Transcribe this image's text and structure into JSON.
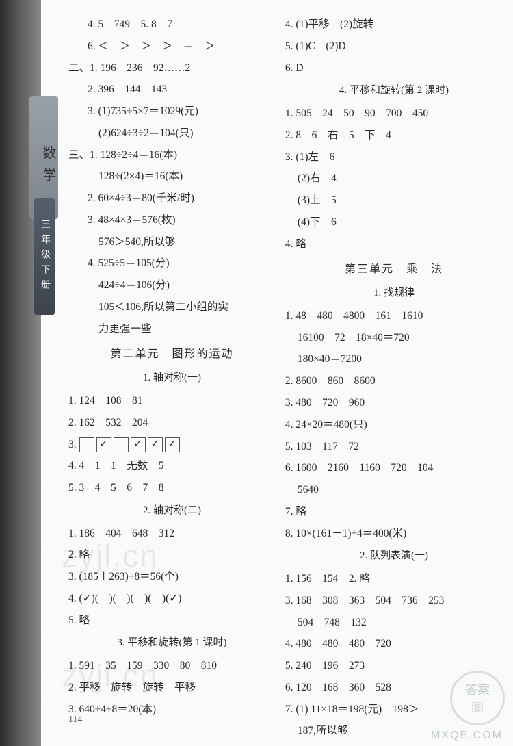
{
  "sidebar": {
    "subject": "数学",
    "grade": "三年级下册"
  },
  "page_number": "114",
  "watermarks": {
    "wm1": "zyjl.cn",
    "wm2": "zyjl.cn",
    "logo_top": "答案",
    "logo_bottom": "圈",
    "url": "MXQE.COM"
  },
  "col1": {
    "lines": [
      {
        "cls": "line indent",
        "t": "4. 5　749　5. 8　7"
      },
      {
        "cls": "line indent",
        "t": "6. ＜　＞　＞　＞　＝　＞"
      },
      {
        "cls": "line",
        "t": "二、1. 196　236　92……2"
      },
      {
        "cls": "line indent",
        "t": "2. 396　144　143"
      },
      {
        "cls": "line indent",
        "t": "3. (1)735÷5×7＝1029(元)"
      },
      {
        "cls": "line indent2",
        "t": "(2)624÷3÷2＝104(只)"
      },
      {
        "cls": "line",
        "t": "三、1. 128÷2÷4＝16(本)"
      },
      {
        "cls": "line indent2",
        "t": "128÷(2×4)＝16(本)"
      },
      {
        "cls": "line indent",
        "t": "2. 60×4÷3＝80(千米/时)"
      },
      {
        "cls": "line indent",
        "t": "3. 48×4×3＝576(枚)"
      },
      {
        "cls": "line indent2",
        "t": "576＞540,所以够"
      },
      {
        "cls": "line indent",
        "t": "4. 525÷5＝105(分)"
      },
      {
        "cls": "line indent2",
        "t": "424÷4＝106(分)"
      },
      {
        "cls": "line indent2",
        "t": "105＜106,所以第二小组的实"
      },
      {
        "cls": "line indent2",
        "t": "力更强一些"
      }
    ],
    "h_unit2": "第二单元　图形的运动",
    "h_s1": "1. 轴对称(一)",
    "s1": [
      {
        "cls": "line",
        "t": "1. 124　108　81"
      },
      {
        "cls": "line",
        "t": "2. 162　532　204"
      }
    ],
    "s1_checks_label": "3. ",
    "s1_checks": [
      "",
      "✓",
      "",
      "✓",
      "✓",
      "✓"
    ],
    "s1b": [
      {
        "cls": "line",
        "t": "4. 4　1　1　无数　5"
      },
      {
        "cls": "line",
        "t": "5. 3　4　5　6　7　8"
      }
    ],
    "h_s2": "2. 轴对称(二)",
    "s2": [
      {
        "cls": "line",
        "t": "1. 186　404　648　312"
      },
      {
        "cls": "line",
        "t": "2. 略"
      },
      {
        "cls": "line",
        "t": "3. (185＋263)÷8＝56(个)"
      },
      {
        "cls": "line",
        "t": "4. (✓)(　)(　)(　)(　)(✓)"
      },
      {
        "cls": "line",
        "t": "5. 略"
      }
    ],
    "h_s3": "3. 平移和旋转(第 1 课时)",
    "s3": [
      {
        "cls": "line",
        "t": "1. 591　35　159　330　80　810"
      },
      {
        "cls": "line",
        "t": "2. 平移　旋转　旋转　平移"
      },
      {
        "cls": "line",
        "t": "3. 640÷4÷8＝20(本)"
      }
    ]
  },
  "col2": {
    "top": [
      {
        "cls": "line",
        "t": "4. (1)平移　(2)旋转"
      },
      {
        "cls": "line",
        "t": "5. (1)C　(2)D"
      },
      {
        "cls": "line",
        "t": "6. D"
      }
    ],
    "h_s4": "4. 平移和旋转(第 2 课时)",
    "s4": [
      {
        "cls": "line",
        "t": "1. 505　24　50　90　700　450"
      },
      {
        "cls": "line",
        "t": "2. 8　6　右　5　下　4"
      },
      {
        "cls": "line",
        "t": "3. (1)左　6"
      },
      {
        "cls": "line indent3",
        "t": "(2)右　4"
      },
      {
        "cls": "line indent3",
        "t": "(3)上　5"
      },
      {
        "cls": "line indent3",
        "t": "(4)下　6"
      },
      {
        "cls": "line",
        "t": "4. 略"
      }
    ],
    "h_unit3": "第三单元　乘　法",
    "h_u3s1": "1. 找规律",
    "u3s1": [
      {
        "cls": "line",
        "t": "1. 48　480　4800　161　1610"
      },
      {
        "cls": "line indent3",
        "t": "16100　72　18×40＝720"
      },
      {
        "cls": "line indent3",
        "t": "180×40＝7200"
      },
      {
        "cls": "line",
        "t": "2. 8600　860　8600"
      },
      {
        "cls": "line",
        "t": "3. 480　720　960"
      },
      {
        "cls": "line",
        "t": "4. 24×20＝480(只)"
      },
      {
        "cls": "line",
        "t": "5. 103　117　72"
      },
      {
        "cls": "line",
        "t": "6. 1600　2160　1160　720　104"
      },
      {
        "cls": "line indent3",
        "t": "5640"
      },
      {
        "cls": "line",
        "t": "7. 略"
      },
      {
        "cls": "line",
        "t": "8. 10×(161－1)÷4＝400(米)"
      }
    ],
    "h_u3s2": "2. 队列表演(一)",
    "u3s2": [
      {
        "cls": "line",
        "t": "1. 156　154　2. 略"
      },
      {
        "cls": "line",
        "t": "3. 168　308　363　504　736　253"
      },
      {
        "cls": "line indent3",
        "t": "504　748　132"
      },
      {
        "cls": "line",
        "t": "4. 480　480　480　720"
      },
      {
        "cls": "line",
        "t": "5. 240　196　273"
      },
      {
        "cls": "line",
        "t": "6. 120　168　360　528"
      },
      {
        "cls": "line",
        "t": "7. (1) 11×18＝198(元)　198＞"
      },
      {
        "cls": "line indent3",
        "t": "187,所以够"
      }
    ]
  }
}
